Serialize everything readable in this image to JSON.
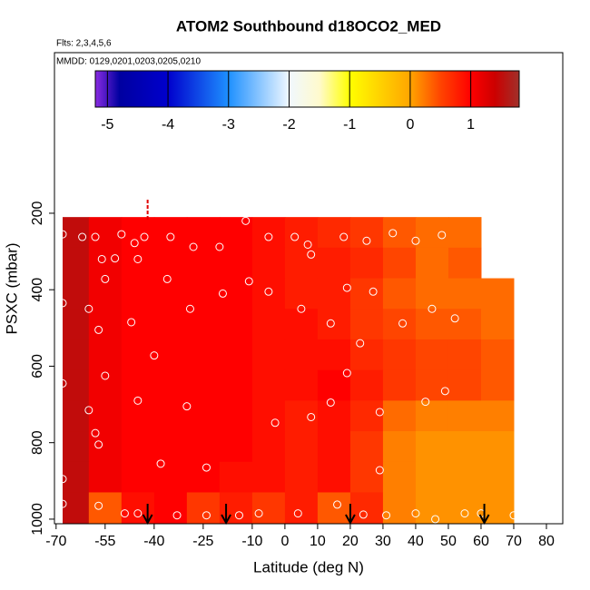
{
  "chart_data": {
    "type": "heatmap",
    "title": "ATOM2 Southbound d18OCO2_MED",
    "subtitle": "Flts: 2,3,4,5,6",
    "annotation": "MMDD: 0129,0201,0203,0205,0210",
    "x_label": "Latitude (deg N)",
    "y_label": "PSXC (mbar)",
    "xlim": [
      -70.5,
      85
    ],
    "ylim": [
      1012,
      -220
    ],
    "xticks": [
      -70,
      -55,
      -40,
      -25,
      -10,
      0,
      10,
      20,
      30,
      40,
      50,
      60,
      70,
      80
    ],
    "yticks": [
      200,
      400,
      600,
      800,
      1000
    ],
    "x_edges": [
      -68,
      -60,
      -50,
      -40,
      -30,
      -20,
      -10,
      0,
      10,
      20,
      30,
      40,
      50,
      60,
      70
    ],
    "y_edges": [
      210,
      290,
      370,
      450,
      530,
      610,
      690,
      770,
      850,
      930,
      1010
    ],
    "z": [
      [
        1.5,
        1.1,
        1.0,
        1.0,
        1.0,
        1.0,
        0.9,
        0.8,
        0.7,
        0.6,
        0.4,
        0.3,
        0.3,
        null
      ],
      [
        1.5,
        1.1,
        1.0,
        1.0,
        1.0,
        1.0,
        0.9,
        0.8,
        0.8,
        0.7,
        0.5,
        0.3,
        0.4,
        null
      ],
      [
        1.5,
        1.1,
        1.0,
        1.0,
        1.0,
        1.0,
        0.9,
        0.8,
        0.8,
        0.6,
        0.4,
        0.3,
        0.3,
        0.3
      ],
      [
        1.5,
        1.1,
        1.0,
        1.0,
        1.0,
        1.0,
        0.9,
        0.9,
        0.8,
        0.6,
        0.5,
        0.4,
        0.4,
        0.3
      ],
      [
        1.5,
        1.1,
        1.0,
        1.0,
        1.0,
        1.0,
        0.9,
        0.9,
        0.9,
        0.7,
        0.6,
        0.5,
        0.5,
        0.4
      ],
      [
        1.5,
        1.1,
        1.0,
        1.0,
        1.0,
        1.0,
        0.9,
        0.9,
        1.0,
        0.8,
        0.6,
        0.5,
        0.5,
        0.4
      ],
      [
        1.5,
        1.1,
        1.0,
        1.0,
        1.0,
        1.0,
        0.9,
        0.8,
        0.9,
        0.7,
        0.3,
        0.2,
        0.2,
        0.2
      ],
      [
        1.5,
        1.1,
        1.0,
        1.0,
        1.0,
        1.0,
        0.9,
        0.8,
        0.9,
        0.6,
        0.2,
        0.1,
        0.1,
        0.1
      ],
      [
        1.5,
        1.1,
        1.0,
        1.0,
        1.0,
        0.9,
        0.9,
        0.8,
        0.9,
        0.6,
        0.2,
        0.1,
        0.1,
        0.1
      ],
      [
        1.5,
        0.4,
        0.9,
        1.0,
        0.6,
        0.8,
        0.6,
        0.8,
        0.4,
        0.7,
        0.2,
        0.1,
        0.1,
        0.1
      ]
    ],
    "clim": [
      -5.2,
      1.8
    ],
    "cticks": [
      -5,
      -4,
      -3,
      -2,
      -1,
      0,
      1
    ],
    "colorscale": [
      [
        -5.2,
        "#8a2be2"
      ],
      [
        -4.8,
        "#0000a0"
      ],
      [
        -4,
        "#0000cd"
      ],
      [
        -3,
        "#1e90ff"
      ],
      [
        -2,
        "#f0f8ff"
      ],
      [
        -1.5,
        "#fffacd"
      ],
      [
        -1,
        "#ffff00"
      ],
      [
        0,
        "#ffa500"
      ],
      [
        0.5,
        "#ff4500"
      ],
      [
        1,
        "#ff0000"
      ],
      [
        1.4,
        "#cc0000"
      ],
      [
        1.8,
        "#a0302a"
      ]
    ],
    "points": {
      "x": [
        -68,
        -62,
        -58,
        -50,
        -46,
        -43,
        -35,
        -28,
        -20,
        -12,
        -5,
        3,
        7,
        18,
        25,
        33,
        40,
        48,
        -56,
        -52,
        -55,
        -45,
        -36,
        -19,
        -11,
        -5,
        8,
        19,
        27,
        5,
        14,
        -29,
        -60,
        -57,
        -68,
        -47,
        23,
        36,
        45,
        52,
        -40,
        -55,
        19,
        -68,
        -45,
        -30,
        -60,
        -3,
        8,
        14,
        29,
        43,
        49,
        -58,
        -57,
        -38,
        -24,
        -68,
        29,
        -57,
        -49,
        -45,
        -33,
        -24,
        -8,
        4,
        16,
        31,
        40,
        46,
        55,
        70,
        -68,
        -14,
        24,
        60
      ],
      "y": [
        255,
        262,
        262,
        255,
        278,
        262,
        262,
        288,
        288,
        220,
        262,
        262,
        282,
        262,
        272,
        252,
        272,
        257,
        320,
        318,
        372,
        320,
        372,
        410,
        378,
        405,
        308,
        395,
        405,
        450,
        488,
        450,
        450,
        505,
        435,
        485,
        540,
        488,
        450,
        475,
        572,
        625,
        618,
        645,
        690,
        705,
        715,
        748,
        733,
        695,
        720,
        693,
        665,
        775,
        805,
        855,
        865,
        895,
        872,
        965,
        985,
        985,
        990,
        990,
        985,
        985,
        962,
        990,
        985,
        1000,
        985,
        990,
        960,
        990,
        988,
        985
      ]
    },
    "arrows_x": [
      -42,
      -18,
      20,
      61
    ],
    "top_marker_x": -42
  }
}
